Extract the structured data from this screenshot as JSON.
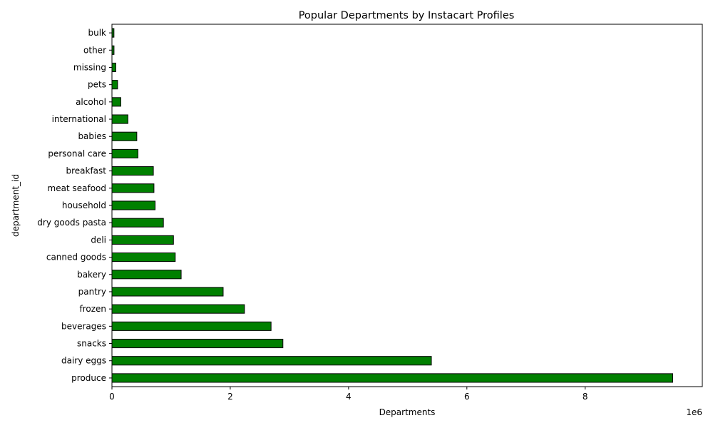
{
  "chart_data": {
    "type": "bar",
    "orientation": "horizontal",
    "title": "Popular Departments by Instacart Profiles",
    "xlabel": "Departments",
    "ylabel": "department_id",
    "x_scale_label": "1e6",
    "x_tick_labels": [
      "0",
      "2",
      "4",
      "6",
      "8"
    ],
    "x_ticks": [
      0,
      2000000,
      4000000,
      6000000,
      8000000
    ],
    "xlim": [
      0,
      9980000
    ],
    "grid": false,
    "legend": "none",
    "bar_color": "#008000",
    "bar_edge_color": "#000000",
    "categories": [
      "produce",
      "dairy eggs",
      "snacks",
      "beverages",
      "frozen",
      "pantry",
      "bakery",
      "canned goods",
      "deli",
      "dry goods pasta",
      "household",
      "meat seafood",
      "breakfast",
      "personal care",
      "babies",
      "international",
      "alcohol",
      "pets",
      "missing",
      "other",
      "bulk"
    ],
    "values": [
      9480000,
      5400000,
      2890000,
      2690000,
      2240000,
      1880000,
      1170000,
      1070000,
      1040000,
      870000,
      730000,
      710000,
      700000,
      440000,
      420000,
      270000,
      150000,
      95000,
      65000,
      35000,
      34000
    ]
  }
}
